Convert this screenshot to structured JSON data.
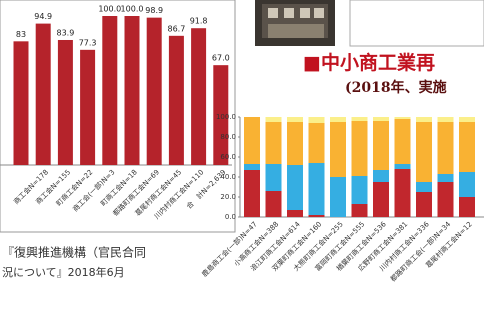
{
  "chart_data": [
    {
      "type": "bar",
      "categories": [
        null,
        "商工会N=178",
        "商工会N=155",
        "町商工会N=22",
        "商工会(一部)N=3",
        "町商工会N=18",
        "都路町商工会N=69",
        "葛尾村商工会N=45",
        "川内村商工会N=110",
        "合　計N=2,639"
      ],
      "values": [
        83,
        94.9,
        83.9,
        77.3,
        100.0,
        100.0,
        98.9,
        86.7,
        91.8,
        67.0
      ],
      "value_labels": [
        "83",
        "94.9",
        "83.9",
        "77.3",
        "100.0",
        "100.0",
        "98.9",
        "86.7",
        "91.8",
        "67.0"
      ],
      "color": "#b5232b",
      "ylim": [
        0,
        100
      ]
    },
    {
      "type": "stacked-bar",
      "title": "■中小商工業再",
      "subtitle": "(2018年、実施",
      "categories": [
        "鹿島商工会(一部)N=47",
        "小高商工会N=388",
        "浪江町商工会N=614",
        "双葉町商工会N=160",
        "大熊町商工会N=255",
        "富岡町商工会N=555",
        "楢葉町商工会N=536",
        "広野町商工会N=381",
        "川内村商工会N=336",
        "都路町商工会(一部)N=34",
        "葛尾村商工会N=12"
      ],
      "series": [
        {
          "color": "#c1272d",
          "values": [
            47,
            26,
            7,
            2,
            0,
            13,
            35,
            48,
            25,
            35,
            20
          ]
        },
        {
          "color": "#35aee2",
          "values": [
            6,
            27,
            45,
            52,
            40,
            28,
            12,
            5,
            10,
            8,
            25
          ]
        },
        {
          "color": "#f9b233",
          "values": [
            47,
            42,
            43,
            40,
            55,
            55,
            49,
            45,
            60,
            52,
            50
          ]
        },
        {
          "color": "#fbef8a",
          "values": [
            0,
            5,
            5,
            6,
            5,
            4,
            4,
            2,
            5,
            5,
            5
          ]
        }
      ],
      "ylim": [
        0,
        100
      ],
      "yticks": [
        {
          "value": 0,
          "label": "0.0"
        },
        {
          "value": 20,
          "label": "20.0"
        },
        {
          "value": 40,
          "label": "40.0"
        },
        {
          "value": 60,
          "label": "60.0"
        },
        {
          "value": 80,
          "label": "80.0"
        },
        {
          "value": 100,
          "label": "100.0"
        }
      ]
    }
  ],
  "caption": {
    "lines": [
      "『復興推進機構（官民合同",
      "況について』2018年6月"
    ]
  }
}
